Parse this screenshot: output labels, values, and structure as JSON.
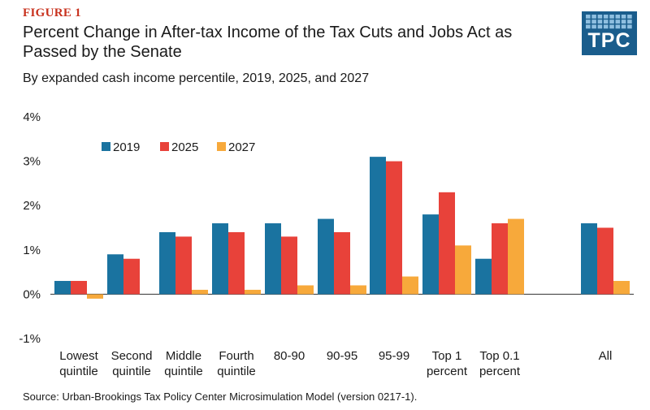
{
  "figure_label": "FIGURE 1",
  "title": "Percent Change in After-tax Income of the Tax Cuts and Jobs Act as Passed by the Senate",
  "subtitle": "By expanded cash income percentile, 2019, 2025, and 2027",
  "logo": {
    "text": "TPC",
    "color": "#1a5d8c"
  },
  "source_prefix": "Source:",
  "source_text": "Urban-Brookings Tax Policy Center Microsimulation Model (version 0217-1).",
  "chart_data": {
    "type": "bar",
    "categories": [
      [
        "Lowest",
        "quintile"
      ],
      [
        "Second",
        "quintile"
      ],
      [
        "Middle",
        "quintile"
      ],
      [
        "Fourth",
        "quintile"
      ],
      [
        "80-90"
      ],
      [
        "90-95"
      ],
      [
        "95-99"
      ],
      [
        "Top 1",
        "percent"
      ],
      [
        "Top 0.1",
        "percent"
      ],
      [
        "All"
      ]
    ],
    "series": [
      {
        "name": "2019",
        "color": "#1a73a0",
        "values": [
          0.3,
          0.9,
          1.4,
          1.6,
          1.6,
          1.7,
          3.1,
          1.8,
          0.8,
          1.6
        ]
      },
      {
        "name": "2025",
        "color": "#e8423a",
        "values": [
          0.3,
          0.8,
          1.3,
          1.4,
          1.3,
          1.4,
          3.0,
          2.3,
          1.6,
          1.5
        ]
      },
      {
        "name": "2027",
        "color": "#f7a93b",
        "values": [
          -0.1,
          0.0,
          0.1,
          0.1,
          0.2,
          0.2,
          0.4,
          1.1,
          1.7,
          0.3
        ]
      }
    ],
    "yticks": [
      "-1%",
      "0%",
      "1%",
      "2%",
      "3%",
      "4%"
    ],
    "ylim": [
      -1,
      4
    ],
    "legend_position": "top-left",
    "grid": false
  }
}
